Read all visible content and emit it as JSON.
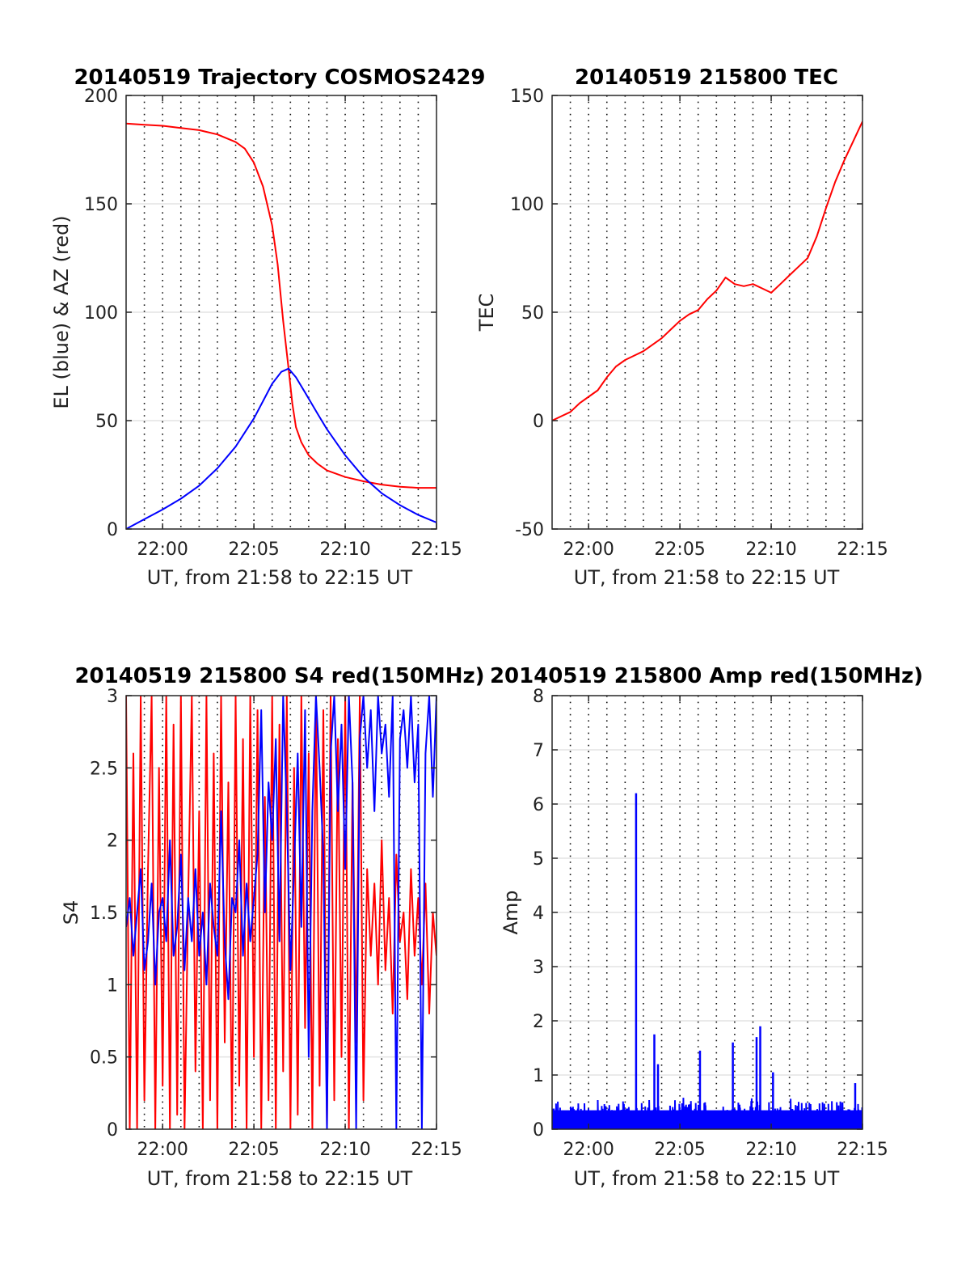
{
  "chart_data": [
    {
      "type": "line",
      "title": "20140519 Trajectory COSMOS2429",
      "xlabel": "UT, from 21:58 to 22:15 UT",
      "ylabel": "EL (blue) & AZ (red)",
      "xlim": [
        -2,
        15
      ],
      "x_tick_values": [
        0,
        5,
        10,
        15
      ],
      "x_tick_labels": [
        "22:00",
        "22:05",
        "22:10",
        "22:15"
      ],
      "ylim": [
        0,
        200
      ],
      "y_ticks": [
        0,
        50,
        100,
        150,
        200
      ],
      "grid": true,
      "vgrid_minute_step": 1,
      "series": [
        {
          "color": "#ff0000",
          "x": [
            -2,
            -1,
            0,
            1,
            2,
            3,
            4,
            4.5,
            5,
            5.5,
            6,
            6.3,
            6.6,
            6.9,
            7.1,
            7.3,
            7.6,
            8,
            8.5,
            9,
            10,
            11,
            12,
            13,
            14,
            15
          ],
          "values": [
            187,
            186.5,
            186,
            185,
            184,
            182,
            178.5,
            175.5,
            169,
            158,
            140,
            122,
            96,
            74,
            58,
            47,
            40,
            34,
            30,
            27,
            24,
            22,
            20.5,
            19.5,
            19,
            19
          ]
        },
        {
          "color": "#0000ff",
          "x": [
            -2,
            -1,
            0,
            1,
            2,
            3,
            4,
            5,
            5.5,
            6,
            6.5,
            6.9,
            7.3,
            7.8,
            8.5,
            9,
            10,
            11,
            12,
            13,
            14,
            15
          ],
          "values": [
            0,
            4.5,
            9,
            14,
            20,
            28,
            38,
            51,
            59,
            67,
            72.5,
            74,
            70,
            63,
            53,
            46,
            34,
            24,
            16.5,
            11,
            6.5,
            3
          ]
        }
      ]
    },
    {
      "type": "line",
      "title": "20140519 215800 TEC",
      "xlabel": "UT, from 21:58 to 22:15 UT",
      "ylabel": "TEC",
      "xlim": [
        -2,
        15
      ],
      "x_tick_values": [
        0,
        5,
        10,
        15
      ],
      "x_tick_labels": [
        "22:00",
        "22:05",
        "22:10",
        "22:15"
      ],
      "ylim": [
        -50,
        150
      ],
      "y_ticks": [
        -50,
        0,
        50,
        100,
        150
      ],
      "grid": true,
      "vgrid_minute_step": 1,
      "series": [
        {
          "color": "#ff0000",
          "x": [
            -2,
            -1.5,
            -1,
            -0.5,
            0,
            0.5,
            1,
            1.5,
            2,
            2.5,
            3,
            3.5,
            4,
            4.5,
            5,
            5.5,
            6,
            6.5,
            7,
            7.5,
            8,
            8.5,
            9,
            9.5,
            10,
            10.5,
            11,
            11.5,
            12,
            12.5,
            13,
            13.5,
            14,
            14.5,
            15
          ],
          "values": [
            0,
            2,
            4,
            8,
            11,
            14,
            20,
            25,
            28,
            30,
            32,
            35,
            38,
            42,
            46,
            49,
            51,
            56,
            60,
            66,
            63,
            62,
            63,
            61,
            59,
            63,
            67,
            71,
            75,
            85,
            98,
            110,
            120,
            129,
            138
          ]
        }
      ]
    },
    {
      "type": "line",
      "title": "20140519 215800 S4 red(150MHz)",
      "xlabel": "UT, from 21:58 to 22:15 UT",
      "ylabel": "S4",
      "xlim": [
        -2,
        15
      ],
      "x_tick_values": [
        0,
        5,
        10,
        15
      ],
      "x_tick_labels": [
        "22:00",
        "22:05",
        "22:10",
        "22:15"
      ],
      "ylim": [
        0,
        3
      ],
      "y_ticks": [
        0,
        0.5,
        1,
        1.5,
        2,
        2.5,
        3
      ],
      "grid": true,
      "vgrid_minute_step": 1,
      "series": [
        {
          "color": "#ff0000",
          "x": [
            -2,
            -1.8,
            -1.6,
            -1.4,
            -1.2,
            -1,
            -0.8,
            -0.6,
            -0.4,
            -0.2,
            0,
            0.2,
            0.4,
            0.6,
            0.8,
            1,
            1.2,
            1.4,
            1.6,
            1.8,
            2,
            2.2,
            2.4,
            2.6,
            2.8,
            3,
            3.2,
            3.4,
            3.6,
            3.8,
            4,
            4.2,
            4.4,
            4.6,
            4.8,
            5,
            5.2,
            5.4,
            5.6,
            5.8,
            6,
            6.2,
            6.4,
            6.6,
            6.8,
            7,
            7.2,
            7.4,
            7.6,
            7.8,
            8,
            8.2,
            8.4,
            8.6,
            8.8,
            9,
            9.2,
            9.4,
            9.6,
            9.8,
            10,
            10.2,
            10.4,
            10.6,
            10.8,
            11,
            11.2,
            11.4,
            11.6,
            11.8,
            12,
            12.2,
            12.4,
            12.6,
            12.8,
            13,
            13.2,
            13.4,
            13.6,
            13.8,
            14,
            14.2,
            14.4,
            14.6,
            14.8,
            15
          ],
          "values": [
            3,
            0,
            2.6,
            0,
            3,
            0.2,
            1.8,
            3,
            0,
            2.5,
            0.3,
            3,
            0,
            2.8,
            0.1,
            3,
            0,
            1.6,
            3,
            0.4,
            2.2,
            0,
            3,
            0.2,
            2.6,
            0,
            3,
            0.6,
            2.4,
            0,
            3,
            0.3,
            2.7,
            0,
            3,
            0.5,
            2.9,
            0,
            2.3,
            0.2,
            3,
            0,
            2.8,
            0.4,
            3,
            0,
            2.5,
            0.1,
            3,
            0.7,
            2.6,
            0,
            3,
            0.3,
            2.9,
            0,
            3,
            0.2,
            2.7,
            0.5,
            3,
            0,
            2.4,
            0.6,
            3,
            0.2,
            1.8,
            1.2,
            1.7,
            1,
            2,
            1.1,
            1.6,
            0.8,
            1.9,
            1.3,
            1.5,
            0.9,
            1.8,
            1.2,
            1.6,
            1,
            1.7,
            0.8,
            1.5,
            1.2
          ]
        },
        {
          "color": "#0000ff",
          "x": [
            -2,
            -1.8,
            -1.6,
            -1.4,
            -1.2,
            -1,
            -0.8,
            -0.6,
            -0.4,
            -0.2,
            0,
            0.2,
            0.4,
            0.6,
            0.8,
            1,
            1.2,
            1.4,
            1.6,
            1.8,
            2,
            2.2,
            2.4,
            2.6,
            2.8,
            3,
            3.2,
            3.4,
            3.6,
            3.8,
            4,
            4.2,
            4.4,
            4.6,
            4.8,
            5,
            5.2,
            5.4,
            5.6,
            5.8,
            6,
            6.2,
            6.4,
            6.6,
            6.8,
            7,
            7.2,
            7.4,
            7.6,
            7.8,
            8,
            8.2,
            8.4,
            8.6,
            8.8,
            9,
            9.2,
            9.4,
            9.6,
            9.8,
            10,
            10.2,
            10.4,
            10.6,
            10.8,
            11,
            11.2,
            11.4,
            11.6,
            11.8,
            12,
            12.2,
            12.4,
            12.6,
            12.8,
            13,
            13.2,
            13.4,
            13.6,
            13.8,
            14,
            14.2,
            14.4,
            14.6,
            14.8,
            15
          ],
          "values": [
            1.4,
            1.6,
            1.2,
            1.5,
            1.8,
            1.1,
            1.3,
            1.7,
            1.0,
            1.5,
            1.6,
            1.3,
            2.0,
            1.2,
            1.4,
            1.9,
            1.1,
            1.6,
            1.3,
            1.8,
            1.2,
            1.5,
            1.0,
            1.7,
            1.4,
            1.2,
            2.2,
            1.3,
            0.9,
            1.6,
            1.5,
            2.0,
            1.2,
            1.7,
            1.3,
            1.6,
            1.9,
            2.9,
            1.5,
            2.4,
            2.0,
            2.7,
            1.3,
            3.0,
            2.2,
            1.1,
            1.8,
            2.6,
            1.4,
            2.9,
            0.5,
            2.2,
            3.0,
            2.5,
            1.9,
            0.0,
            2.6,
            3.0,
            2.2,
            2.8,
            1.8,
            3.0,
            2.4,
            0.0,
            2.7,
            3.0,
            2.5,
            2.9,
            2.2,
            3.0,
            2.6,
            2.8,
            2.3,
            3.0,
            0.0,
            2.7,
            2.9,
            2.5,
            3.0,
            2.4,
            2.8,
            0.0,
            2.6,
            3.0,
            2.3,
            3.0
          ]
        }
      ]
    },
    {
      "type": "line",
      "title": "20140519 215800 Amp red(150MHz)",
      "xlabel": "UT, from 21:58 to 22:15 UT",
      "ylabel": "Amp",
      "xlim": [
        -2,
        15
      ],
      "x_tick_values": [
        0,
        5,
        10,
        15
      ],
      "x_tick_labels": [
        "22:00",
        "22:05",
        "22:10",
        "22:15"
      ],
      "ylim": [
        0,
        8
      ],
      "y_ticks": [
        0,
        1,
        2,
        3,
        4,
        5,
        6,
        7,
        8
      ],
      "grid": true,
      "vgrid_minute_step": 1,
      "series": [
        {
          "color": "#0000ff",
          "baseline_noise": 0.4,
          "spikes": [
            {
              "x": 2.6,
              "value": 6.2
            },
            {
              "x": 3.6,
              "value": 1.75
            },
            {
              "x": 3.8,
              "value": 1.2
            },
            {
              "x": 6.1,
              "value": 1.45
            },
            {
              "x": 7.9,
              "value": 1.6
            },
            {
              "x": 9.2,
              "value": 1.7
            },
            {
              "x": 9.4,
              "value": 1.9
            },
            {
              "x": 10.1,
              "value": 1.05
            },
            {
              "x": 14.6,
              "value": 0.85
            }
          ]
        }
      ]
    }
  ]
}
